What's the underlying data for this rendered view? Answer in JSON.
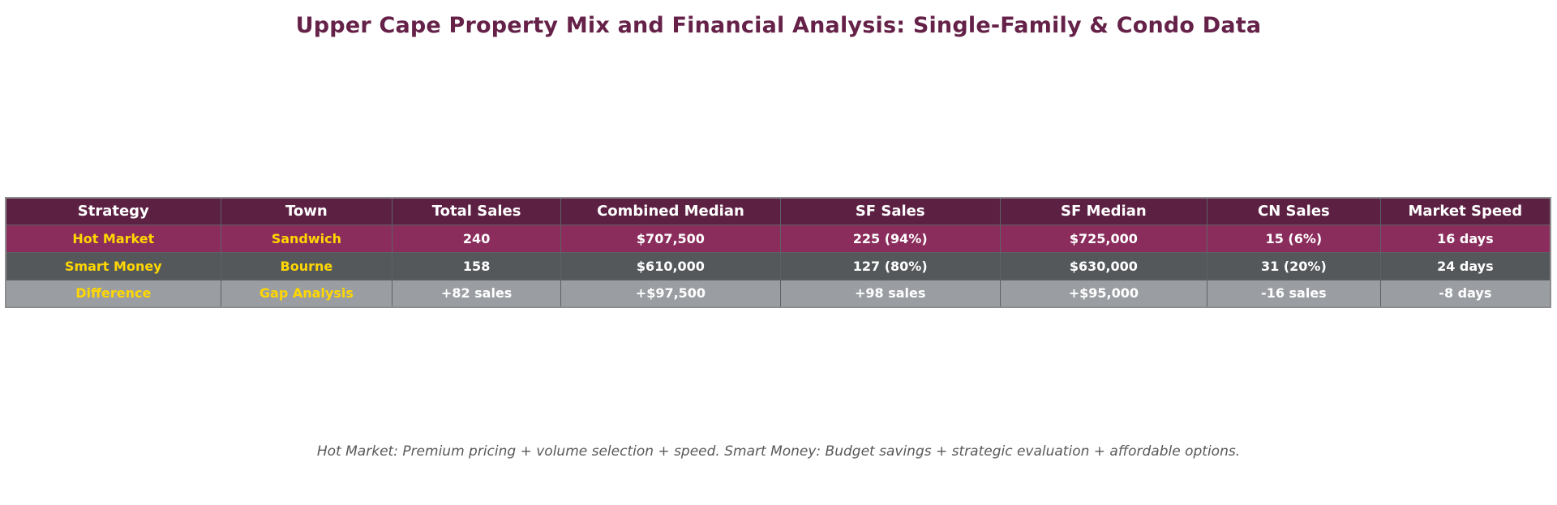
{
  "title": "Upper Cape Property Mix and Financial Analysis: Single-Family & Condo Data",
  "footnote": "Hot Market: Premium pricing + volume selection + speed. Smart Money: Budget savings + strategic evaluation + affordable options.",
  "colors": {
    "title_text": "#652148",
    "header_bg": "#5c2042",
    "header_text": "#ffffff",
    "row_hot_market_bg": "#8b2d5c",
    "row_smart_money_bg": "#54585b",
    "row_difference_bg": "#9a9ea2",
    "accent_text": "#ffd700",
    "body_text": "#ffffff",
    "footnote_text": "#595959"
  },
  "table": {
    "columns": [
      {
        "label": "Strategy"
      },
      {
        "label": "Town"
      },
      {
        "label": "Total Sales"
      },
      {
        "label": "Combined Median"
      },
      {
        "label": "SF Sales"
      },
      {
        "label": "SF Median"
      },
      {
        "label": "CN Sales"
      },
      {
        "label": "Market Speed"
      }
    ],
    "rows": [
      {
        "id": "hot-market",
        "bg_key": "row_hot_market_bg",
        "cells": [
          "Hot Market",
          "Sandwich",
          "240",
          "$707,500",
          "225 (94%)",
          "$725,000",
          "15 (6%)",
          "16 days"
        ]
      },
      {
        "id": "smart-money",
        "bg_key": "row_smart_money_bg",
        "cells": [
          "Smart Money",
          "Bourne",
          "158",
          "$610,000",
          "127 (80%)",
          "$630,000",
          "31 (20%)",
          "24 days"
        ]
      },
      {
        "id": "difference",
        "bg_key": "row_difference_bg",
        "cells": [
          "Difference",
          "Gap Analysis",
          "+82 sales",
          "+$97,500",
          "+98 sales",
          "+$95,000",
          "-16 sales",
          "-8 days"
        ]
      }
    ]
  },
  "chart_data": {
    "type": "table",
    "title": "Upper Cape Property Mix and Financial Analysis: Single-Family & Condo Data",
    "columns": [
      "Strategy",
      "Town",
      "Total Sales",
      "Combined Median",
      "SF Sales",
      "SF Median",
      "CN Sales",
      "Market Speed"
    ],
    "rows": [
      [
        "Hot Market",
        "Sandwich",
        "240",
        "$707,500",
        "225 (94%)",
        "$725,000",
        "15 (6%)",
        "16 days"
      ],
      [
        "Smart Money",
        "Bourne",
        "158",
        "$610,000",
        "127 (80%)",
        "$630,000",
        "31 (20%)",
        "24 days"
      ],
      [
        "Difference",
        "Gap Analysis",
        "+82 sales",
        "+$97,500",
        "+98 sales",
        "+$95,000",
        "-16 sales",
        "-8 days"
      ]
    ],
    "annotation": "Hot Market: Premium pricing + volume selection + speed. Smart Money: Budget savings + strategic evaluation + affordable options."
  }
}
